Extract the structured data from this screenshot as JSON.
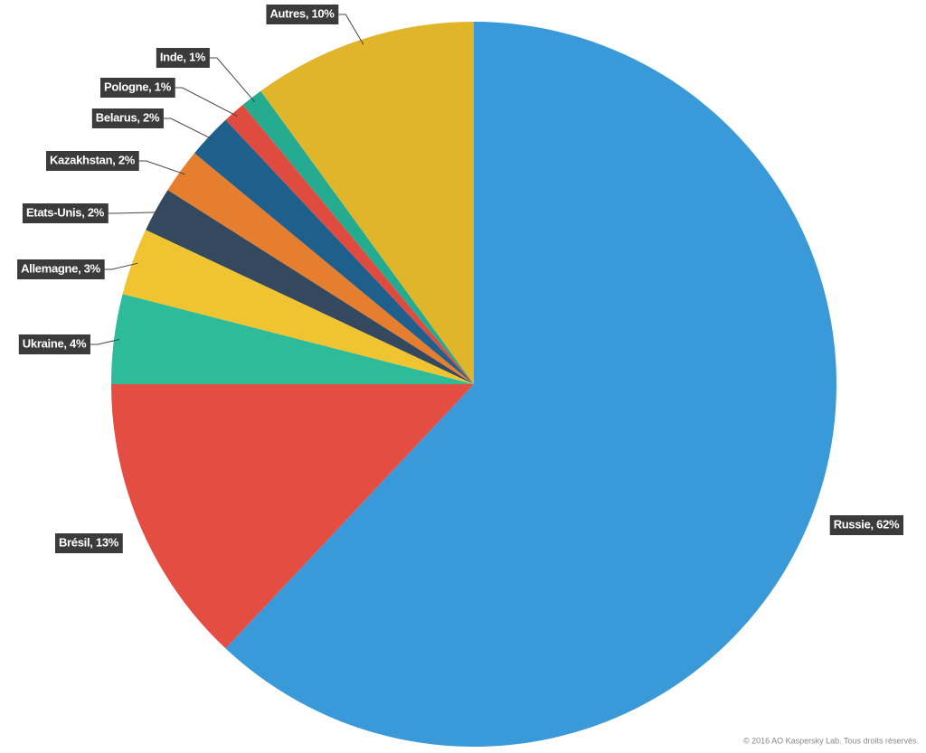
{
  "chart_data": {
    "type": "pie",
    "values": [
      62,
      13,
      4,
      3,
      2,
      2,
      2,
      1,
      1,
      10
    ],
    "value_labels": [
      "Russie, 62%",
      "Brésil, 13%",
      "Ukraine, 4%",
      "Allemagne, 3%",
      "Etats-Unis, 2%",
      "Kazakhstan, 2%",
      "Belarus, 2%",
      "Pologne, 1%",
      "Inde, 1%",
      "Autres, 10%"
    ],
    "colors": [
      "#3a99d8",
      "#e44d42",
      "#2dbb99",
      "#f0c330",
      "#34495e",
      "#e67e30",
      "#1f5f8b",
      "#e04b40",
      "#25ab8f",
      "#e0b52a"
    ],
    "footer": "© 2016 AO Kaspersky Lab. Tous droits réservés."
  }
}
